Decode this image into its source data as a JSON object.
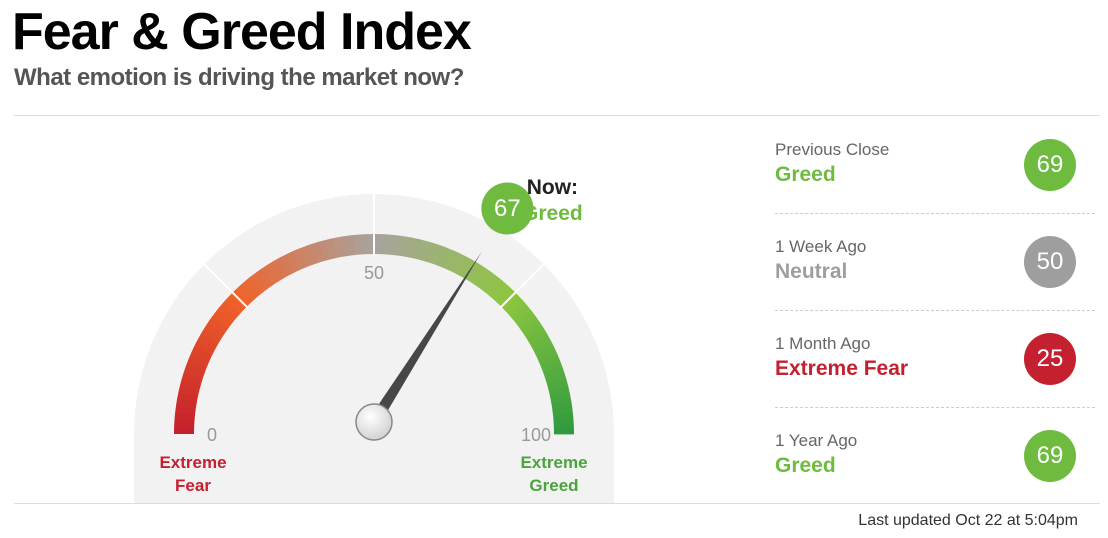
{
  "header": {
    "title": "Fear & Greed Index",
    "subtitle": "What emotion is driving the market now?"
  },
  "gauge": {
    "value": 67,
    "min": 0,
    "max": 100,
    "ticks": [
      0,
      50,
      100
    ],
    "now_label": "Now:",
    "rating": "Greed",
    "color": "#6fbb3f",
    "low_label": "Extreme Fear",
    "low_color": "#c5202f",
    "high_label": "Extreme Greed",
    "high_color": "#4aa53d"
  },
  "history": [
    {
      "label": "Previous Close",
      "rating": "Greed",
      "value": 69,
      "color": "#6fbb3f"
    },
    {
      "label": "1 Week Ago",
      "rating": "Neutral",
      "value": 50,
      "color": "#9e9e9e"
    },
    {
      "label": "1 Month Ago",
      "rating": "Extreme Fear",
      "value": 25,
      "color": "#c5202f"
    },
    {
      "label": "1 Year Ago",
      "rating": "Greed",
      "value": 69,
      "color": "#6fbb3f"
    }
  ],
  "footer": "Last updated Oct 22 at 5:04pm"
}
